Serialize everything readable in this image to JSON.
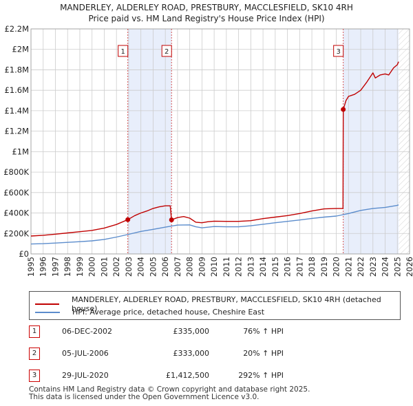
{
  "colors": {
    "property": "#c00000",
    "hpi": "#5b8ccc",
    "shade": "#e8eefb",
    "grid": "#cccccc",
    "vline": "#d04040"
  },
  "chart_data": {
    "type": "line",
    "title": "MANDERLEY, ALDERLEY ROAD, PRESTBURY, MACCLESFIELD, SK10 4RH",
    "subtitle": "Price paid vs. HM Land Registry's House Price Index (HPI)",
    "xlim": [
      1995,
      2026
    ],
    "ylim": [
      0,
      2200000
    ],
    "y_ticks": [
      {
        "v": 0,
        "label": "£0"
      },
      {
        "v": 200000,
        "label": "£200K"
      },
      {
        "v": 400000,
        "label": "£400K"
      },
      {
        "v": 600000,
        "label": "£600K"
      },
      {
        "v": 800000,
        "label": "£800K"
      },
      {
        "v": 1000000,
        "label": "£1M"
      },
      {
        "v": 1200000,
        "label": "£1.2M"
      },
      {
        "v": 1400000,
        "label": "£1.4M"
      },
      {
        "v": 1600000,
        "label": "£1.6M"
      },
      {
        "v": 1800000,
        "label": "£1.8M"
      },
      {
        "v": 2000000,
        "label": "£2M"
      },
      {
        "v": 2200000,
        "label": "£2.2M"
      }
    ],
    "x_ticks": [
      "1995",
      "1996",
      "1997",
      "1998",
      "1999",
      "2000",
      "2001",
      "2002",
      "2003",
      "2004",
      "2005",
      "2006",
      "2007",
      "2008",
      "2009",
      "2010",
      "2011",
      "2012",
      "2013",
      "2014",
      "2015",
      "2016",
      "2017",
      "2018",
      "2019",
      "2020",
      "2021",
      "2022",
      "2023",
      "2024",
      "2025",
      "2026"
    ],
    "shaded_ranges": [
      [
        2002.93,
        2006.51
      ],
      [
        2020.57,
        2025.1
      ]
    ],
    "forecast_start": 2025.1,
    "markers": [
      {
        "label": "1",
        "x": 2002.93,
        "y": 335000
      },
      {
        "label": "2",
        "x": 2006.51,
        "y": 333000
      },
      {
        "label": "3",
        "x": 2020.57,
        "y": 1412500
      }
    ],
    "series": [
      {
        "name": "MANDERLEY, ALDERLEY ROAD, PRESTBURY, MACCLESFIELD, SK10 4RH (detached house)",
        "x": [
          1995,
          1996,
          1997,
          1998,
          1999,
          2000,
          2001,
          2002,
          2002.93,
          2003.5,
          2004,
          2004.5,
          2005,
          2005.5,
          2006,
          2006.4,
          2006.51,
          2007,
          2007.5,
          2008,
          2008.5,
          2009,
          2009.5,
          2010,
          2011,
          2012,
          2013,
          2014,
          2015,
          2016,
          2017,
          2018,
          2019,
          2020,
          2020.55,
          2020.57,
          2020.8,
          2021,
          2021.5,
          2022,
          2022.5,
          2023,
          2023.2,
          2023.6,
          2024,
          2024.3,
          2024.7,
          2025,
          2025.1
        ],
        "values": [
          175000,
          182000,
          193000,
          205000,
          217000,
          230000,
          253000,
          288000,
          335000,
          375000,
          400000,
          420000,
          445000,
          460000,
          470000,
          470000,
          333000,
          355000,
          365000,
          350000,
          310000,
          305000,
          315000,
          320000,
          318000,
          318000,
          325000,
          345000,
          360000,
          375000,
          395000,
          420000,
          440000,
          445000,
          445000,
          1412500,
          1500000,
          1540000,
          1560000,
          1600000,
          1680000,
          1770000,
          1720000,
          1750000,
          1760000,
          1750000,
          1820000,
          1850000,
          1880000
        ]
      },
      {
        "name": "HPI: Average price, detached house, Cheshire East",
        "x": [
          1995,
          1996,
          1997,
          1998,
          1999,
          2000,
          2001,
          2002,
          2003,
          2004,
          2005,
          2006,
          2007,
          2008,
          2008.5,
          2009,
          2010,
          2011,
          2012,
          2013,
          2014,
          2015,
          2016,
          2017,
          2018,
          2019,
          2020,
          2021,
          2022,
          2023,
          2024,
          2025,
          2025.1
        ],
        "values": [
          97000,
          100000,
          106000,
          113000,
          120000,
          128000,
          142000,
          165000,
          192000,
          220000,
          240000,
          262000,
          282000,
          284000,
          265000,
          255000,
          268000,
          265000,
          265000,
          275000,
          290000,
          305000,
          318000,
          332000,
          347000,
          360000,
          370000,
          395000,
          425000,
          445000,
          455000,
          475000,
          480000
        ]
      }
    ]
  },
  "legend": {
    "property": "MANDERLEY, ALDERLEY ROAD, PRESTBURY, MACCLESFIELD, SK10 4RH (detached house)",
    "hpi": "HPI: Average price, detached house, Cheshire East"
  },
  "sales": [
    {
      "num": "1",
      "date": "06-DEC-2002",
      "price": "£335,000",
      "hpi": "76% ↑ HPI"
    },
    {
      "num": "2",
      "date": "05-JUL-2006",
      "price": "£333,000",
      "hpi": "20% ↑ HPI"
    },
    {
      "num": "3",
      "date": "29-JUL-2020",
      "price": "£1,412,500",
      "hpi": "292% ↑ HPI"
    }
  ],
  "footer": {
    "line1": "Contains HM Land Registry data © Crown copyright and database right 2025.",
    "line2": "This data is licensed under the Open Government Licence v3.0."
  }
}
